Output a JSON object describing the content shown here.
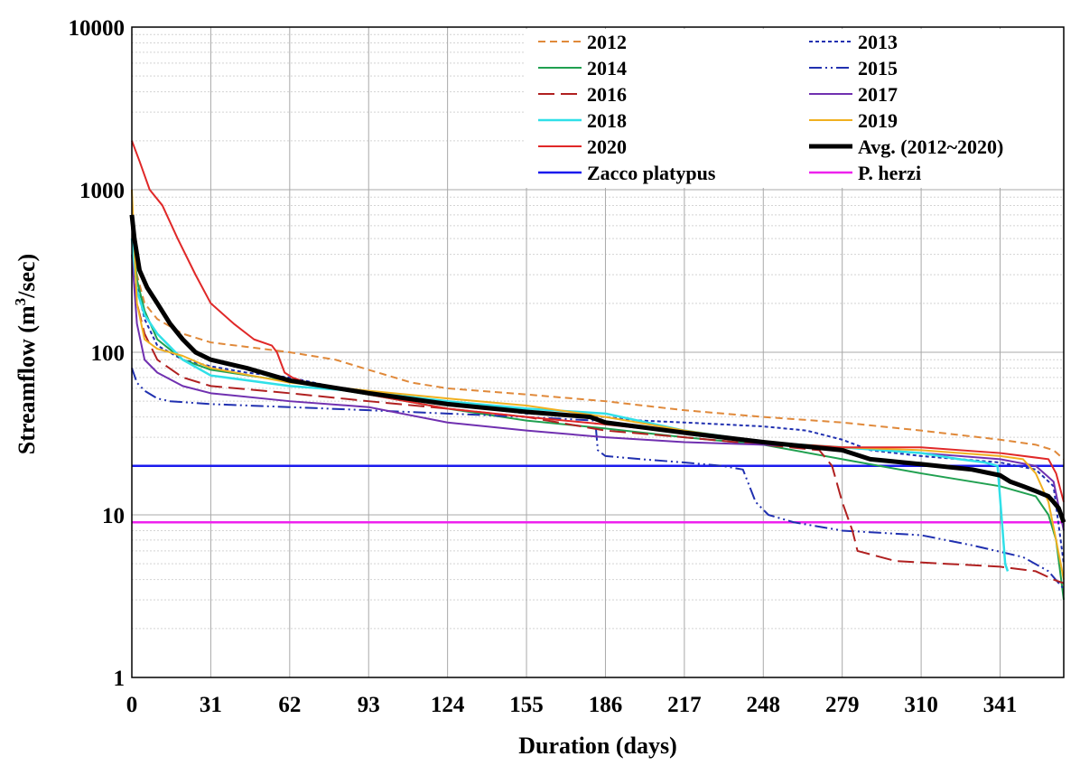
{
  "chart_data": {
    "type": "line",
    "title": "",
    "xlabel": "Duration (days)",
    "ylabel_main": "Streamflow (m",
    "ylabel_sup": "3",
    "ylabel_tail": "/sec)",
    "y_scale": "log",
    "xlim": [
      0,
      366
    ],
    "ylim": [
      1,
      10000
    ],
    "grid": true,
    "legend_position": "top-right",
    "x_ticks": [
      0,
      31,
      62,
      93,
      124,
      155,
      186,
      217,
      248,
      279,
      310,
      341
    ],
    "x_tick_labels": [
      "0",
      "31",
      "62",
      "93",
      "124",
      "155",
      "186",
      "217",
      "248",
      "279",
      "310",
      "341"
    ],
    "y_ticks": [
      1,
      10,
      100,
      1000,
      10000
    ],
    "y_tick_labels": [
      "1",
      "10",
      "100",
      "1000",
      "10000"
    ],
    "series": [
      {
        "name": "2012",
        "color": "#e0893a",
        "width": 2,
        "dash": "8,5",
        "points": [
          [
            0,
            700
          ],
          [
            2,
            300
          ],
          [
            5,
            200
          ],
          [
            10,
            160
          ],
          [
            20,
            130
          ],
          [
            31,
            115
          ],
          [
            45,
            108
          ],
          [
            62,
            100
          ],
          [
            80,
            90
          ],
          [
            93,
            78
          ],
          [
            110,
            65
          ],
          [
            124,
            60
          ],
          [
            155,
            55
          ],
          [
            186,
            50
          ],
          [
            217,
            44
          ],
          [
            248,
            40
          ],
          [
            279,
            37
          ],
          [
            310,
            33
          ],
          [
            341,
            29
          ],
          [
            355,
            27
          ],
          [
            362,
            25
          ],
          [
            366,
            22
          ]
        ]
      },
      {
        "name": "2013",
        "color": "#2030b0",
        "width": 2,
        "dash": "4,3",
        "points": [
          [
            0,
            600
          ],
          [
            2,
            260
          ],
          [
            5,
            160
          ],
          [
            10,
            110
          ],
          [
            20,
            90
          ],
          [
            31,
            82
          ],
          [
            45,
            75
          ],
          [
            62,
            70
          ],
          [
            93,
            55
          ],
          [
            124,
            48
          ],
          [
            155,
            42
          ],
          [
            186,
            40
          ],
          [
            200,
            38
          ],
          [
            217,
            37
          ],
          [
            248,
            35
          ],
          [
            265,
            33
          ],
          [
            279,
            29
          ],
          [
            290,
            25
          ],
          [
            310,
            23
          ],
          [
            341,
            21
          ],
          [
            355,
            19
          ],
          [
            362,
            15
          ],
          [
            366,
            5
          ]
        ]
      },
      {
        "name": "2014",
        "color": "#20a050",
        "width": 2,
        "dash": "",
        "points": [
          [
            0,
            650
          ],
          [
            2,
            280
          ],
          [
            5,
            180
          ],
          [
            10,
            120
          ],
          [
            20,
            90
          ],
          [
            31,
            78
          ],
          [
            62,
            66
          ],
          [
            93,
            55
          ],
          [
            124,
            45
          ],
          [
            155,
            38
          ],
          [
            186,
            34
          ],
          [
            217,
            30
          ],
          [
            248,
            27
          ],
          [
            279,
            22
          ],
          [
            310,
            18
          ],
          [
            341,
            15
          ],
          [
            355,
            13
          ],
          [
            360,
            10
          ],
          [
            363,
            7
          ],
          [
            366,
            3
          ]
        ]
      },
      {
        "name": "2015",
        "color": "#2030b0",
        "width": 2,
        "dash": "14,4,2,4,2,4",
        "points": [
          [
            0,
            80
          ],
          [
            2,
            65
          ],
          [
            5,
            58
          ],
          [
            10,
            52
          ],
          [
            15,
            50
          ],
          [
            31,
            48
          ],
          [
            62,
            46
          ],
          [
            93,
            44
          ],
          [
            124,
            42
          ],
          [
            155,
            40
          ],
          [
            182,
            38
          ],
          [
            183,
            25
          ],
          [
            186,
            23
          ],
          [
            200,
            22
          ],
          [
            217,
            21
          ],
          [
            232,
            20
          ],
          [
            240,
            19
          ],
          [
            245,
            12
          ],
          [
            250,
            10
          ],
          [
            260,
            9
          ],
          [
            279,
            8
          ],
          [
            310,
            7.5
          ],
          [
            330,
            6.5
          ],
          [
            350,
            5.5
          ],
          [
            360,
            4.5
          ],
          [
            366,
            3.5
          ]
        ]
      },
      {
        "name": "2016",
        "color": "#b02020",
        "width": 2,
        "dash": "18,7",
        "points": [
          [
            0,
            500
          ],
          [
            2,
            200
          ],
          [
            5,
            130
          ],
          [
            10,
            90
          ],
          [
            20,
            70
          ],
          [
            31,
            62
          ],
          [
            62,
            56
          ],
          [
            93,
            50
          ],
          [
            124,
            45
          ],
          [
            155,
            40
          ],
          [
            186,
            33
          ],
          [
            217,
            30
          ],
          [
            248,
            27
          ],
          [
            270,
            25
          ],
          [
            275,
            20
          ],
          [
            279,
            12
          ],
          [
            283,
            8
          ],
          [
            285,
            6
          ],
          [
            300,
            5.2
          ],
          [
            320,
            5
          ],
          [
            341,
            4.8
          ],
          [
            355,
            4.5
          ],
          [
            362,
            4
          ],
          [
            366,
            3.8
          ]
        ]
      },
      {
        "name": "2017",
        "color": "#7030b0",
        "width": 2,
        "dash": "",
        "points": [
          [
            0,
            400
          ],
          [
            2,
            150
          ],
          [
            5,
            90
          ],
          [
            10,
            75
          ],
          [
            20,
            62
          ],
          [
            31,
            56
          ],
          [
            62,
            50
          ],
          [
            93,
            46
          ],
          [
            124,
            37
          ],
          [
            155,
            33
          ],
          [
            186,
            30
          ],
          [
            217,
            28
          ],
          [
            248,
            27
          ],
          [
            279,
            26
          ],
          [
            310,
            24
          ],
          [
            341,
            22
          ],
          [
            355,
            20
          ],
          [
            362,
            16
          ],
          [
            366,
            8
          ]
        ]
      },
      {
        "name": "2018",
        "color": "#30e0e8",
        "width": 2.5,
        "dash": "",
        "points": [
          [
            0,
            500
          ],
          [
            2,
            240
          ],
          [
            5,
            170
          ],
          [
            10,
            130
          ],
          [
            20,
            90
          ],
          [
            31,
            72
          ],
          [
            62,
            62
          ],
          [
            93,
            57
          ],
          [
            124,
            50
          ],
          [
            155,
            45
          ],
          [
            186,
            42
          ],
          [
            217,
            33
          ],
          [
            248,
            28
          ],
          [
            279,
            26
          ],
          [
            310,
            24
          ],
          [
            325,
            22
          ],
          [
            335,
            21
          ],
          [
            340,
            20
          ],
          [
            342,
            8
          ],
          [
            343,
            5
          ],
          [
            344,
            4.5
          ]
        ]
      },
      {
        "name": "2019",
        "color": "#f0b020",
        "width": 2,
        "dash": "",
        "points": [
          [
            0,
            1000
          ],
          [
            2,
            200
          ],
          [
            5,
            120
          ],
          [
            10,
            105
          ],
          [
            20,
            95
          ],
          [
            31,
            80
          ],
          [
            62,
            65
          ],
          [
            93,
            58
          ],
          [
            124,
            52
          ],
          [
            155,
            47
          ],
          [
            186,
            40
          ],
          [
            217,
            33
          ],
          [
            248,
            28
          ],
          [
            279,
            26
          ],
          [
            310,
            25
          ],
          [
            341,
            23
          ],
          [
            350,
            22
          ],
          [
            355,
            18
          ],
          [
            360,
            12
          ],
          [
            363,
            7
          ],
          [
            366,
            4
          ]
        ]
      },
      {
        "name": "2020",
        "color": "#e02828",
        "width": 2,
        "dash": "",
        "points": [
          [
            0,
            2000
          ],
          [
            3,
            1500
          ],
          [
            7,
            1000
          ],
          [
            12,
            800
          ],
          [
            18,
            500
          ],
          [
            25,
            300
          ],
          [
            31,
            200
          ],
          [
            40,
            150
          ],
          [
            48,
            120
          ],
          [
            55,
            110
          ],
          [
            57,
            100
          ],
          [
            60,
            75
          ],
          [
            63,
            70
          ],
          [
            70,
            64
          ],
          [
            80,
            60
          ],
          [
            93,
            55
          ],
          [
            124,
            45
          ],
          [
            155,
            40
          ],
          [
            186,
            36
          ],
          [
            217,
            32
          ],
          [
            248,
            28
          ],
          [
            279,
            26
          ],
          [
            310,
            26
          ],
          [
            341,
            24
          ],
          [
            360,
            22
          ],
          [
            363,
            18
          ],
          [
            366,
            12
          ]
        ]
      },
      {
        "name": "Avg. (2012~2020)",
        "color": "#000000",
        "width": 5,
        "dash": "",
        "points": [
          [
            0,
            700
          ],
          [
            1,
            500
          ],
          [
            3,
            320
          ],
          [
            6,
            250
          ],
          [
            10,
            200
          ],
          [
            15,
            150
          ],
          [
            20,
            120
          ],
          [
            25,
            100
          ],
          [
            31,
            90
          ],
          [
            45,
            80
          ],
          [
            62,
            67
          ],
          [
            93,
            56
          ],
          [
            124,
            48
          ],
          [
            155,
            43
          ],
          [
            180,
            40
          ],
          [
            186,
            37
          ],
          [
            217,
            32
          ],
          [
            248,
            28
          ],
          [
            279,
            25
          ],
          [
            290,
            22
          ],
          [
            310,
            20.5
          ],
          [
            330,
            19
          ],
          [
            341,
            17.5
          ],
          [
            345,
            16
          ],
          [
            350,
            15
          ],
          [
            355,
            14
          ],
          [
            360,
            13
          ],
          [
            362,
            12
          ],
          [
            364,
            11
          ],
          [
            366,
            9
          ]
        ]
      },
      {
        "name": "Zacco platypus",
        "color": "#1a1aee",
        "width": 2.5,
        "dash": "",
        "points": [
          [
            0,
            20
          ],
          [
            366,
            20
          ]
        ]
      },
      {
        "name": "P. herzi",
        "color": "#ee22ee",
        "width": 2.5,
        "dash": "",
        "points": [
          [
            0,
            9
          ],
          [
            366,
            9
          ]
        ]
      }
    ]
  }
}
